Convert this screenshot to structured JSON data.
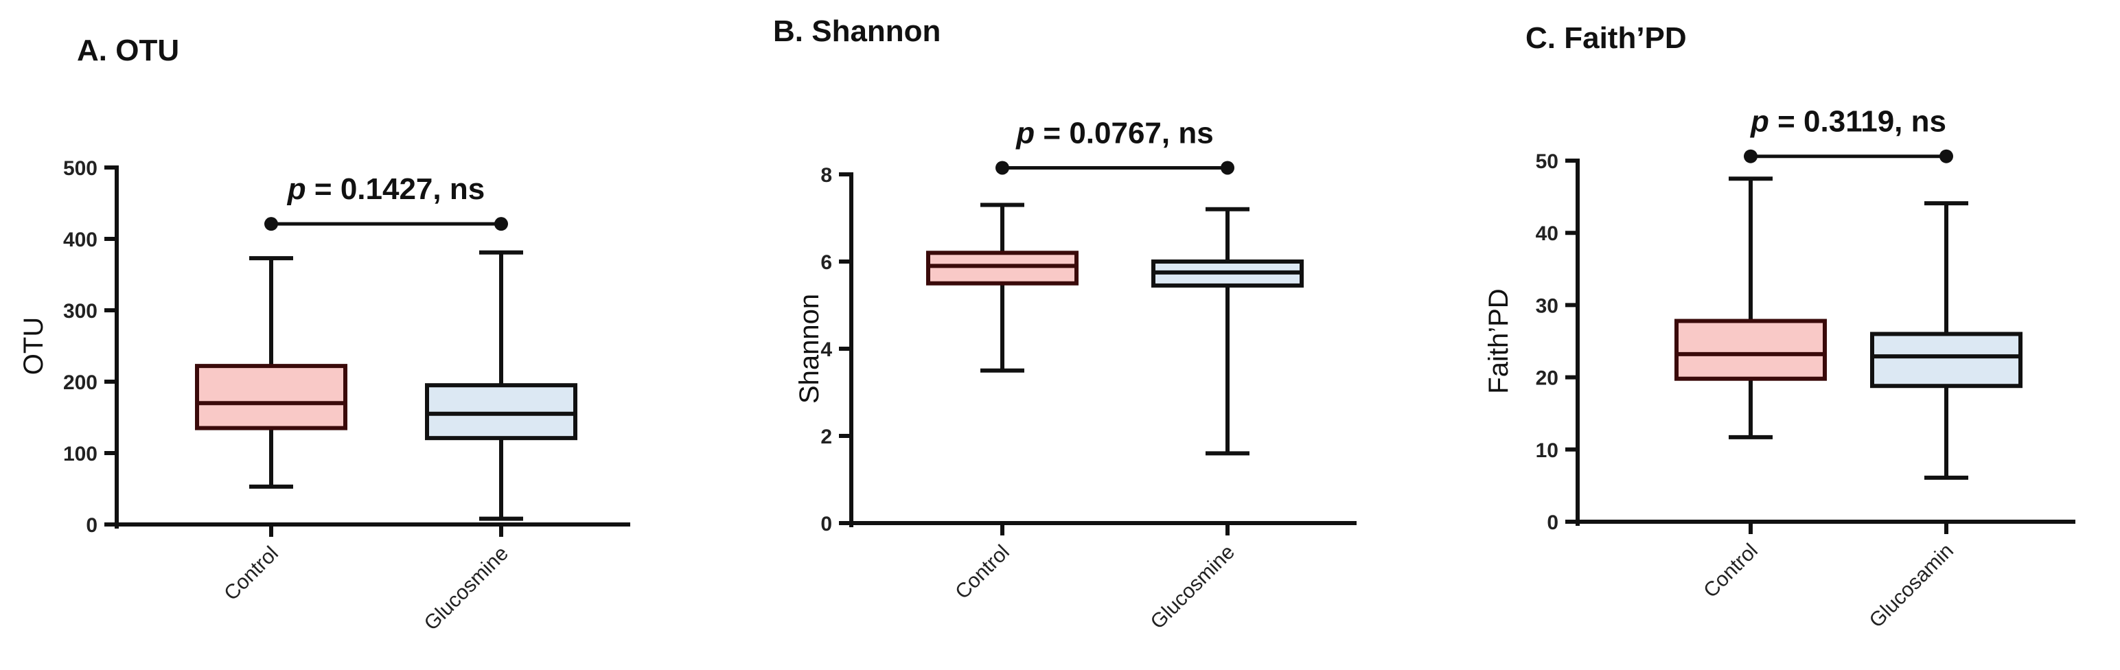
{
  "chart_data": [
    {
      "type": "box",
      "title": "A. OTU",
      "xlabel": "",
      "ylabel": "OTU",
      "ylim": [
        0,
        500
      ],
      "yticks": [
        0,
        100,
        200,
        300,
        400,
        500
      ],
      "categories": [
        "Control",
        "Glucosmine"
      ],
      "boxes": [
        {
          "category": "Control",
          "min": 53,
          "q1": 135,
          "median": 170,
          "q3": 222,
          "max": 373,
          "color": "#f9c9c7",
          "edge": "#3a0a0a"
        },
        {
          "category": "Glucosmine",
          "min": 8,
          "q1": 121,
          "median": 155,
          "q3": 195,
          "max": 381,
          "color": "#dce8f3",
          "edge": "#111111"
        }
      ],
      "annotation": {
        "p_symbol": "p",
        "text": " = 0.1427, ns",
        "bracket_y": 421
      },
      "grid": false,
      "legend": "none"
    },
    {
      "type": "box",
      "title": "B. Shannon",
      "xlabel": "",
      "ylabel": "Shannon",
      "ylim": [
        0,
        8
      ],
      "yticks": [
        0,
        2,
        4,
        6,
        8
      ],
      "categories": [
        "Control",
        "Glucosmine"
      ],
      "boxes": [
        {
          "category": "Control",
          "min": 3.5,
          "q1": 5.5,
          "median": 5.9,
          "q3": 6.2,
          "max": 7.3,
          "color": "#f9c9c7",
          "edge": "#3a0a0a"
        },
        {
          "category": "Glucosmine",
          "min": 1.6,
          "q1": 5.45,
          "median": 5.75,
          "q3": 6.0,
          "max": 7.2,
          "color": "#dce8f3",
          "edge": "#111111"
        }
      ],
      "annotation": {
        "p_symbol": "p",
        "text": " = 0.0767, ns",
        "bracket_y": 8.15
      },
      "grid": false,
      "legend": "none"
    },
    {
      "type": "box",
      "title": "C. Faith’PD",
      "xlabel": "",
      "ylabel": "Faith’PD",
      "ylim": [
        0,
        50
      ],
      "yticks": [
        0,
        10,
        20,
        30,
        40,
        50
      ],
      "categories": [
        "Control",
        "Glucosamin"
      ],
      "boxes": [
        {
          "category": "Control",
          "min": 11.7,
          "q1": 19.8,
          "median": 23.2,
          "q3": 27.8,
          "max": 47.5,
          "color": "#f9c9c7",
          "edge": "#3a0a0a"
        },
        {
          "category": "Glucosamin",
          "min": 6.1,
          "q1": 18.8,
          "median": 22.9,
          "q3": 26.0,
          "max": 44.1,
          "color": "#dce8f3",
          "edge": "#111111"
        }
      ],
      "annotation": {
        "p_symbol": "p",
        "text": " = 0.3119, ns",
        "bracket_y": 50.6
      },
      "grid": false,
      "legend": "none"
    }
  ]
}
